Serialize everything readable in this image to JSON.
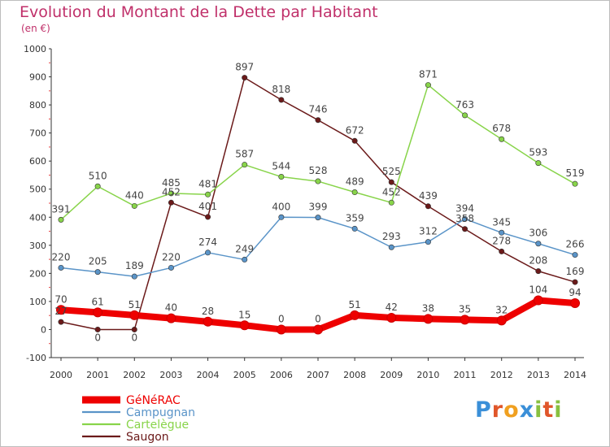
{
  "chart_data": {
    "type": "line",
    "title": "Evolution du Montant de la Dette par Habitant",
    "subtitle": "(en €)",
    "x": [
      "2000",
      "2001",
      "2002",
      "2003",
      "2004",
      "2005",
      "2006",
      "2007",
      "2008",
      "2009",
      "2010",
      "2011",
      "2012",
      "2013",
      "2014"
    ],
    "ylim": [
      -100,
      1000
    ],
    "yticks": [
      -100,
      0,
      100,
      200,
      300,
      400,
      500,
      600,
      700,
      800,
      900,
      1000
    ],
    "grid": false,
    "legend": "bottom-left",
    "series": [
      {
        "name": "Saugon",
        "color": "#6b1a1a",
        "labelled": false,
        "segments": [
          [
            [
              0,
              27
            ],
            [
              1,
              0
            ],
            [
              2,
              0
            ]
          ],
          [
            [
              2,
              0
            ],
            [
              3,
              452
            ],
            [
              4,
              401
            ]
          ],
          [
            [
              4,
              401
            ],
            [
              5,
              897
            ],
            [
              6,
              818
            ],
            [
              7,
              746
            ],
            [
              8,
              672
            ],
            [
              9,
              525
            ],
            [
              10,
              439
            ],
            [
              11,
              358
            ],
            [
              12,
              278
            ],
            [
              13,
              208
            ],
            [
              14,
              169
            ]
          ]
        ],
        "labels": []
      },
      {
        "name": "Cartelègue",
        "color": "#88d44a",
        "labelled": true,
        "segments": [
          [
            [
              0,
              391
            ],
            [
              1,
              510
            ],
            [
              2,
              440
            ],
            [
              3,
              485
            ],
            [
              4,
              481
            ],
            [
              5,
              587
            ],
            [
              6,
              544
            ],
            [
              7,
              528
            ],
            [
              8,
              489
            ],
            [
              9,
              452
            ],
            [
              10,
              871
            ],
            [
              11,
              763
            ],
            [
              12,
              678
            ],
            [
              13,
              593
            ],
            [
              14,
              519
            ]
          ]
        ],
        "labels": [
          [
            0,
            "391"
          ],
          [
            1,
            "510"
          ],
          [
            2,
            "440"
          ],
          [
            3,
            "485"
          ],
          [
            4,
            "481"
          ],
          [
            5,
            "587"
          ],
          [
            6,
            "544"
          ],
          [
            7,
            "528"
          ],
          [
            8,
            "489"
          ],
          [
            9,
            "452"
          ],
          [
            10,
            "871"
          ],
          [
            11,
            "763"
          ],
          [
            12,
            "678"
          ],
          [
            13,
            "593"
          ],
          [
            14,
            "519"
          ]
        ]
      },
      {
        "name": "Campugnan",
        "color": "#5a94c8",
        "labelled": true,
        "segments": [
          [
            [
              0,
              220
            ],
            [
              1,
              205
            ],
            [
              2,
              189
            ],
            [
              3,
              220
            ],
            [
              4,
              274
            ],
            [
              5,
              249
            ],
            [
              6,
              400
            ],
            [
              7,
              399
            ],
            [
              8,
              359
            ],
            [
              9,
              293
            ],
            [
              10,
              312
            ],
            [
              11,
              394
            ],
            [
              12,
              345
            ],
            [
              13,
              306
            ],
            [
              14,
              266
            ]
          ]
        ],
        "labels": [
          [
            0,
            "220"
          ],
          [
            1,
            "205"
          ],
          [
            2,
            "189"
          ],
          [
            3,
            "220"
          ],
          [
            4,
            "274"
          ],
          [
            5,
            "249"
          ],
          [
            6,
            "400"
          ],
          [
            7,
            "399"
          ],
          [
            8,
            "359"
          ],
          [
            9,
            "293"
          ],
          [
            10,
            "312"
          ],
          [
            11,
            "394"
          ],
          [
            12,
            "345"
          ],
          [
            13,
            "306"
          ],
          [
            14,
            "266"
          ]
        ]
      },
      {
        "name": "GéNéRAC",
        "color": "#ee0000",
        "labelled": true,
        "segments": [
          [
            [
              0,
              70
            ],
            [
              1,
              61
            ],
            [
              2,
              51
            ],
            [
              3,
              40
            ],
            [
              4,
              28
            ],
            [
              5,
              15
            ],
            [
              6,
              0
            ],
            [
              7,
              0
            ],
            [
              8,
              51
            ],
            [
              9,
              42
            ],
            [
              10,
              38
            ],
            [
              11,
              35
            ],
            [
              12,
              32
            ],
            [
              13,
              104
            ],
            [
              14,
              94
            ]
          ]
        ],
        "labels": [
          [
            0,
            "70"
          ],
          [
            1,
            "61"
          ],
          [
            2,
            "51"
          ],
          [
            3,
            "40"
          ],
          [
            4,
            "28"
          ],
          [
            5,
            "15"
          ],
          [
            6,
            "0"
          ],
          [
            7,
            "0"
          ],
          [
            8,
            "51"
          ],
          [
            9,
            "42"
          ],
          [
            10,
            "38"
          ],
          [
            11,
            "35"
          ],
          [
            12,
            "32"
          ],
          [
            13,
            "104"
          ],
          [
            14,
            "94"
          ]
        ]
      }
    ],
    "extra_labels": [
      [
        0,
        "27"
      ],
      [
        1,
        "0"
      ],
      [
        2,
        "0"
      ],
      [
        3,
        "452"
      ],
      [
        4,
        "401"
      ],
      [
        5,
        "897"
      ],
      [
        6,
        "818"
      ],
      [
        7,
        "746"
      ],
      [
        8,
        "672"
      ],
      [
        9,
        "525"
      ],
      [
        10,
        "439"
      ],
      [
        11,
        "358"
      ],
      [
        12,
        "278"
      ],
      [
        13,
        "208"
      ],
      [
        14,
        "169"
      ]
    ]
  },
  "legend": {
    "items": [
      {
        "name": "GéNéRAC",
        "color": "#ee0000"
      },
      {
        "name": "Campugnan",
        "color": "#5a94c8"
      },
      {
        "name": "Cartelègue",
        "color": "#88d44a"
      },
      {
        "name": "Saugon",
        "color": "#6b1a1a"
      }
    ]
  },
  "logo": {
    "text": "Proxiti",
    "letters": [
      {
        "ch": "P",
        "color": "#3a8fd8"
      },
      {
        "ch": "r",
        "color": "#e0562a"
      },
      {
        "ch": "o",
        "color": "#f0a020"
      },
      {
        "ch": "x",
        "color": "#3a8fd8"
      },
      {
        "ch": "i",
        "color": "#88c040"
      },
      {
        "ch": "t",
        "color": "#e0562a"
      },
      {
        "ch": "i",
        "color": "#88c040"
      }
    ]
  }
}
